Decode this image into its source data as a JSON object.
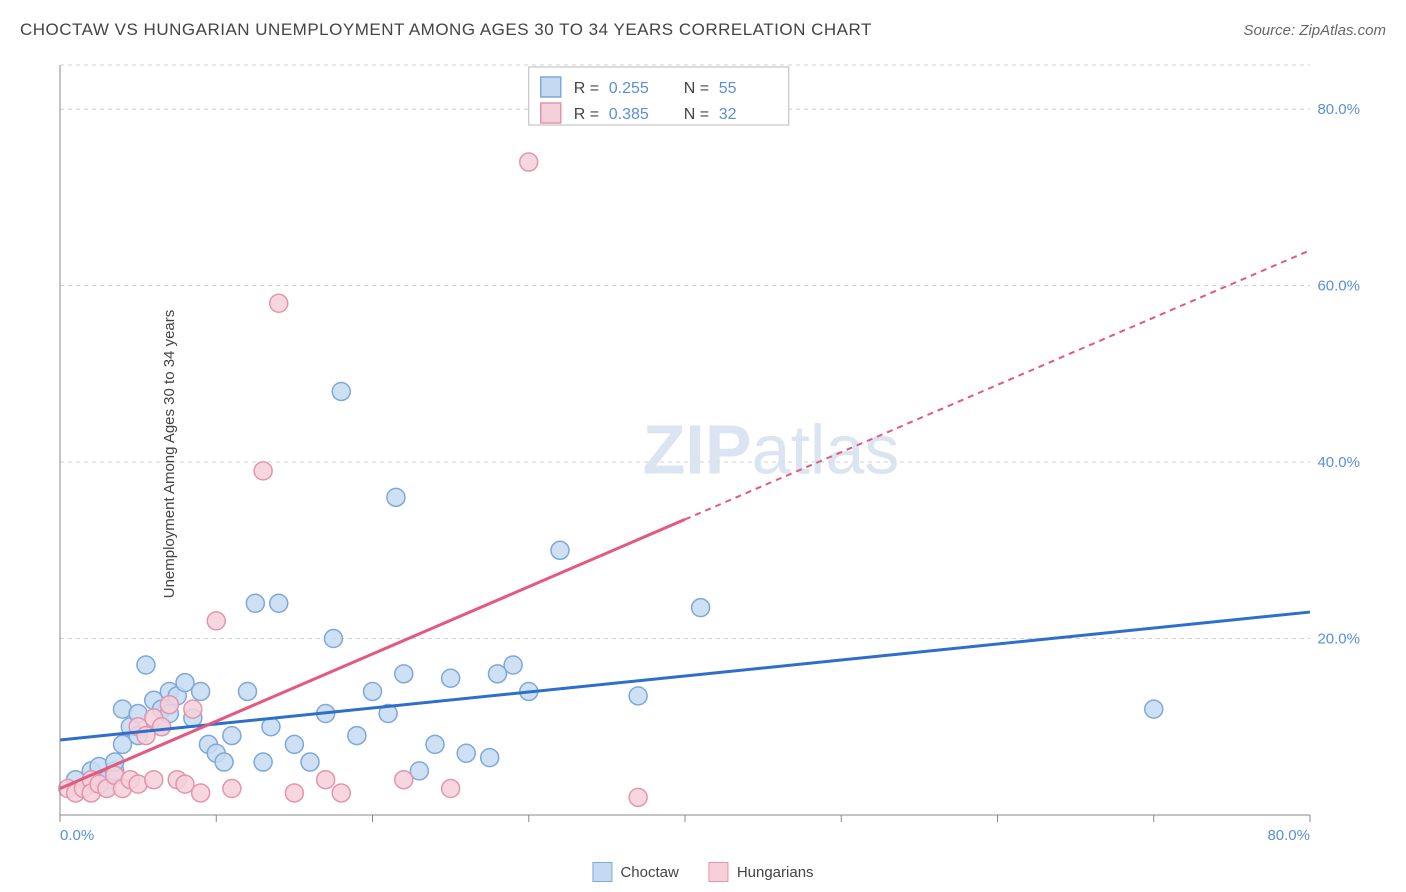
{
  "title": "CHOCTAW VS HUNGARIAN UNEMPLOYMENT AMONG AGES 30 TO 34 YEARS CORRELATION CHART",
  "source": "Source: ZipAtlas.com",
  "y_axis_label": "Unemployment Among Ages 30 to 34 years",
  "watermark": {
    "bold": "ZIP",
    "rest": "atlas"
  },
  "chart": {
    "type": "scatter",
    "xlim": [
      0,
      80
    ],
    "ylim": [
      0,
      85
    ],
    "x_ticks": [
      0,
      10,
      20,
      30,
      40,
      50,
      60,
      70,
      80
    ],
    "y_ticks": [
      20,
      40,
      60,
      80
    ],
    "x_tick_labels": {
      "0": "0.0%",
      "80": "80.0%"
    },
    "y_tick_labels": {
      "20": "20.0%",
      "40": "40.0%",
      "60": "60.0%",
      "80": "80.0%"
    },
    "grid_color": "#d0d0d0",
    "background_color": "#ffffff",
    "axis_label_color": "#5b8fd6",
    "series": [
      {
        "name": "Choctaw",
        "fill_color": "#c5daf2",
        "stroke_color": "#7fa8d9",
        "line_color": "#2e6fc9",
        "marker_radius": 9,
        "marker_opacity": 0.85,
        "R": "0.255",
        "N": "55",
        "trend": {
          "x1": 0,
          "y1": 8.5,
          "x2": 80,
          "y2": 23,
          "dash_after_x": 80
        },
        "points": [
          [
            1,
            4
          ],
          [
            1.5,
            3
          ],
          [
            2,
            5
          ],
          [
            2,
            3.5
          ],
          [
            2.5,
            5.5
          ],
          [
            3,
            4
          ],
          [
            3,
            3
          ],
          [
            3.5,
            5
          ],
          [
            3.5,
            6
          ],
          [
            4,
            12
          ],
          [
            4,
            8
          ],
          [
            4.5,
            10
          ],
          [
            5,
            11.5
          ],
          [
            5,
            9
          ],
          [
            5.5,
            17
          ],
          [
            6,
            13
          ],
          [
            6.5,
            10
          ],
          [
            6.5,
            12
          ],
          [
            7,
            11.5
          ],
          [
            7,
            14
          ],
          [
            7.5,
            13.5
          ],
          [
            8,
            15
          ],
          [
            8.5,
            11
          ],
          [
            9,
            14
          ],
          [
            9.5,
            8
          ],
          [
            10,
            7
          ],
          [
            10.5,
            6
          ],
          [
            11,
            9
          ],
          [
            12,
            14
          ],
          [
            12.5,
            24
          ],
          [
            13,
            6
          ],
          [
            13.5,
            10
          ],
          [
            14,
            24
          ],
          [
            15,
            8
          ],
          [
            16,
            6
          ],
          [
            17,
            11.5
          ],
          [
            17.5,
            20
          ],
          [
            18,
            48
          ],
          [
            19,
            9
          ],
          [
            20,
            14
          ],
          [
            21,
            11.5
          ],
          [
            21.5,
            36
          ],
          [
            22,
            16
          ],
          [
            23,
            5
          ],
          [
            24,
            8
          ],
          [
            25,
            15.5
          ],
          [
            26,
            7
          ],
          [
            27.5,
            6.5
          ],
          [
            28,
            16
          ],
          [
            29,
            17
          ],
          [
            30,
            14
          ],
          [
            32,
            30
          ],
          [
            37,
            13.5
          ],
          [
            41,
            23.5
          ],
          [
            70,
            12
          ]
        ]
      },
      {
        "name": "Hungarians",
        "fill_color": "#f5d0db",
        "stroke_color": "#e495ae",
        "line_color": "#e35a7f",
        "marker_radius": 9,
        "marker_opacity": 0.85,
        "R": "0.385",
        "N": "32",
        "trend": {
          "x1": 0,
          "y1": 3,
          "x2": 80,
          "y2": 64,
          "dash_after_x": 40
        },
        "points": [
          [
            0.5,
            3
          ],
          [
            1,
            2.5
          ],
          [
            1.5,
            3
          ],
          [
            2,
            4
          ],
          [
            2,
            2.5
          ],
          [
            2.5,
            3.5
          ],
          [
            3,
            3
          ],
          [
            3.5,
            4.5
          ],
          [
            4,
            3
          ],
          [
            4.5,
            4
          ],
          [
            5,
            3.5
          ],
          [
            5,
            10
          ],
          [
            5.5,
            9
          ],
          [
            6,
            11
          ],
          [
            6,
            4
          ],
          [
            6.5,
            10
          ],
          [
            7,
            12.5
          ],
          [
            7.5,
            4
          ],
          [
            8,
            3.5
          ],
          [
            8.5,
            12
          ],
          [
            9,
            2.5
          ],
          [
            10,
            22
          ],
          [
            11,
            3
          ],
          [
            13,
            39
          ],
          [
            14,
            58
          ],
          [
            15,
            2.5
          ],
          [
            17,
            4
          ],
          [
            18,
            2.5
          ],
          [
            22,
            4
          ],
          [
            25,
            3
          ],
          [
            30,
            74
          ],
          [
            37,
            2
          ]
        ]
      }
    ]
  },
  "legend_top": {
    "rows": [
      {
        "swatch_fill": "#c5daf2",
        "swatch_stroke": "#7fa8d9",
        "R_label": "R =",
        "R": "0.255",
        "N_label": "N =",
        "N": "55"
      },
      {
        "swatch_fill": "#f5d0db",
        "swatch_stroke": "#e495ae",
        "R_label": "R =",
        "R": "0.385",
        "N_label": "N =",
        "N": "32"
      }
    ]
  },
  "legend_bottom": [
    {
      "label": "Choctaw",
      "fill": "#c5daf2",
      "stroke": "#7fa8d9"
    },
    {
      "label": "Hungarians",
      "fill": "#f5d0db",
      "stroke": "#e495ae"
    }
  ]
}
